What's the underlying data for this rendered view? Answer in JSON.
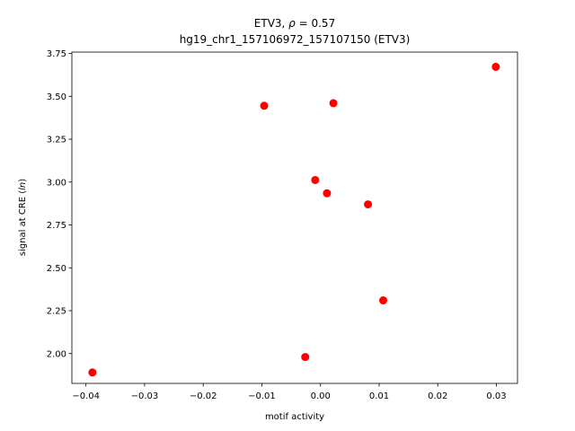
{
  "chart_data": {
    "type": "scatter",
    "title_line1_prefix": "ETV3, ",
    "title_line1_rho": "ρ",
    "title_line1_suffix": " = 0.57",
    "title_line2": "hg19_chr1_157106972_157107150 (ETV3)",
    "xlabel": "motif activity",
    "ylabel_prefix": "signal at CRE (",
    "ylabel_italic": "ln",
    "ylabel_suffix": ")",
    "xlim": [
      -0.0424,
      0.0336
    ],
    "ylim": [
      1.826,
      3.758
    ],
    "xticks": [
      -0.04,
      -0.03,
      -0.02,
      -0.01,
      0.0,
      0.01,
      0.02,
      0.03
    ],
    "xtick_labels": [
      "−0.04",
      "−0.03",
      "−0.02",
      "−0.01",
      "0.00",
      "0.01",
      "0.02",
      "0.03"
    ],
    "yticks": [
      2.0,
      2.25,
      2.5,
      2.75,
      3.0,
      3.25,
      3.5,
      3.75
    ],
    "ytick_labels": [
      "2.00",
      "2.25",
      "2.50",
      "2.75",
      "3.00",
      "3.25",
      "3.50",
      "3.75"
    ],
    "grid": false,
    "marker_color": "#ff0000",
    "points": [
      {
        "x": -0.0389,
        "y": 1.89
      },
      {
        "x": -0.0096,
        "y": 3.445
      },
      {
        "x": -0.0026,
        "y": 1.98
      },
      {
        "x": -0.0009,
        "y": 3.012
      },
      {
        "x": 0.0011,
        "y": 2.935
      },
      {
        "x": 0.0022,
        "y": 3.46
      },
      {
        "x": 0.0081,
        "y": 2.87
      },
      {
        "x": 0.0107,
        "y": 2.31
      },
      {
        "x": 0.0299,
        "y": 3.672
      }
    ]
  }
}
